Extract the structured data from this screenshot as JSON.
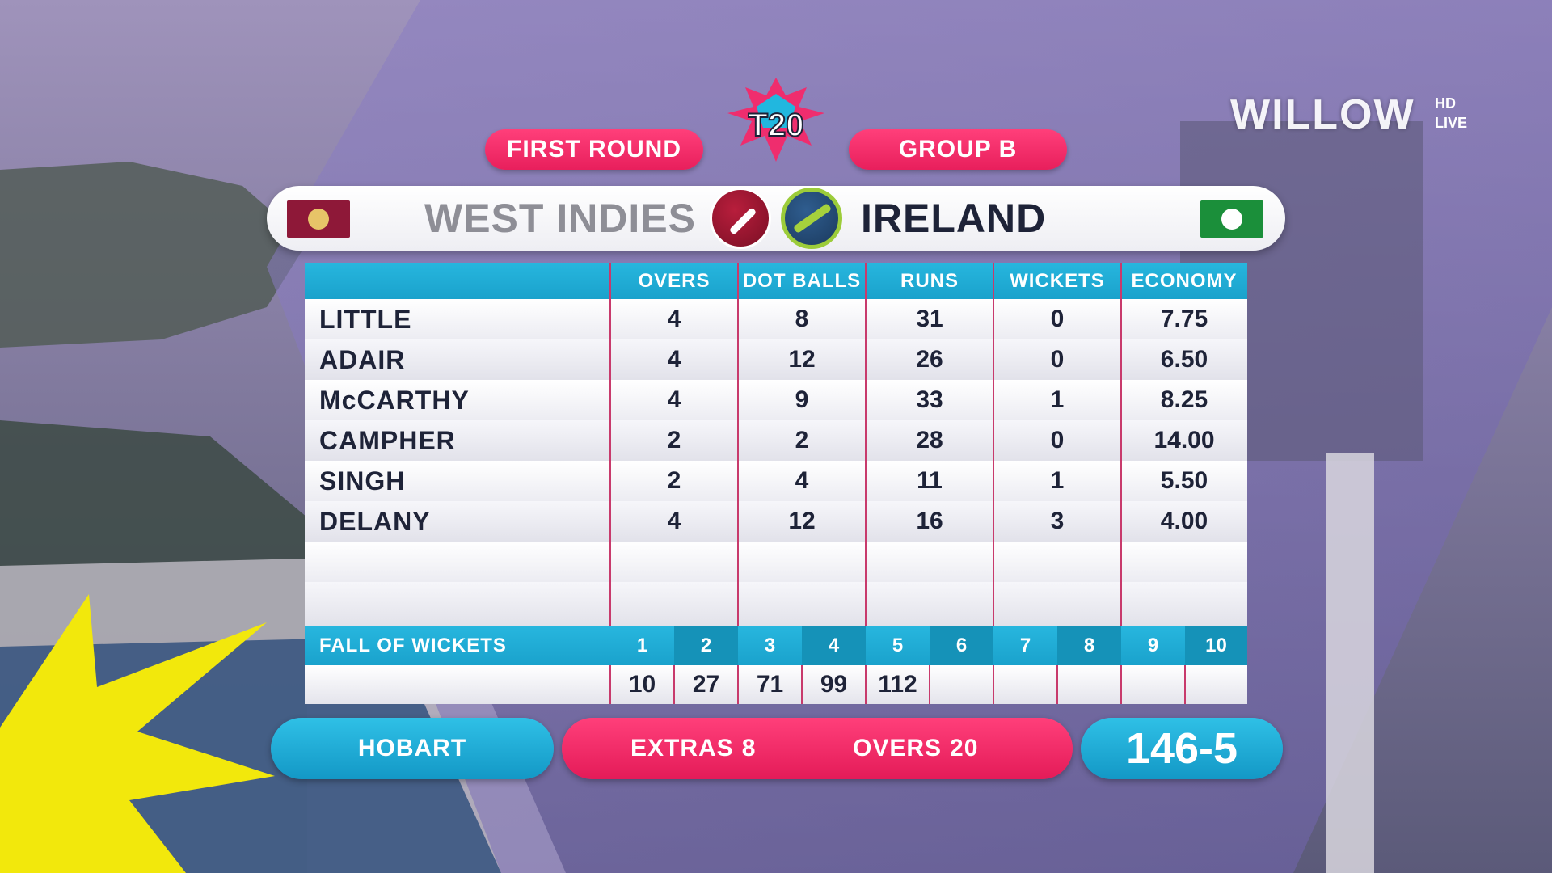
{
  "header": {
    "round": "FIRST ROUND",
    "group": "GROUP B",
    "tournament_logo": "T20",
    "broadcaster": "WILLOW",
    "broadcaster_sup": "HD",
    "broadcaster_live": "LIVE"
  },
  "teams": {
    "batting": "WEST INDIES",
    "bowling": "IRELAND"
  },
  "table": {
    "columns": [
      "OVERS",
      "DOT BALLS",
      "RUNS",
      "WICKETS",
      "ECONOMY"
    ],
    "rows": [
      {
        "name": "LITTLE",
        "overs": "4",
        "dots": "8",
        "runs": "31",
        "wkts": "0",
        "econ": "7.75"
      },
      {
        "name": "ADAIR",
        "overs": "4",
        "dots": "12",
        "runs": "26",
        "wkts": "0",
        "econ": "6.50"
      },
      {
        "name": "McCARTHY",
        "overs": "4",
        "dots": "9",
        "runs": "33",
        "wkts": "1",
        "econ": "8.25"
      },
      {
        "name": "CAMPHER",
        "overs": "2",
        "dots": "2",
        "runs": "28",
        "wkts": "0",
        "econ": "14.00"
      },
      {
        "name": "SINGH",
        "overs": "2",
        "dots": "4",
        "runs": "11",
        "wkts": "1",
        "econ": "5.50"
      },
      {
        "name": "DELANY",
        "overs": "4",
        "dots": "12",
        "runs": "16",
        "wkts": "3",
        "econ": "4.00"
      }
    ]
  },
  "fall_of_wickets": {
    "label": "FALL OF WICKETS",
    "numbers": [
      "1",
      "2",
      "3",
      "4",
      "5",
      "6",
      "7",
      "8",
      "9",
      "10"
    ],
    "values": [
      "10",
      "27",
      "71",
      "99",
      "112",
      "",
      "",
      "",
      "",
      ""
    ]
  },
  "footer": {
    "venue": "HOBART",
    "extras_label": "EXTRAS",
    "extras_value": "8",
    "overs_label": "OVERS",
    "overs_value": "20",
    "score": "146-5"
  },
  "colors": {
    "pink": "#e81f5c",
    "cyan": "#1aa2cc",
    "navy": "#1e2338"
  }
}
